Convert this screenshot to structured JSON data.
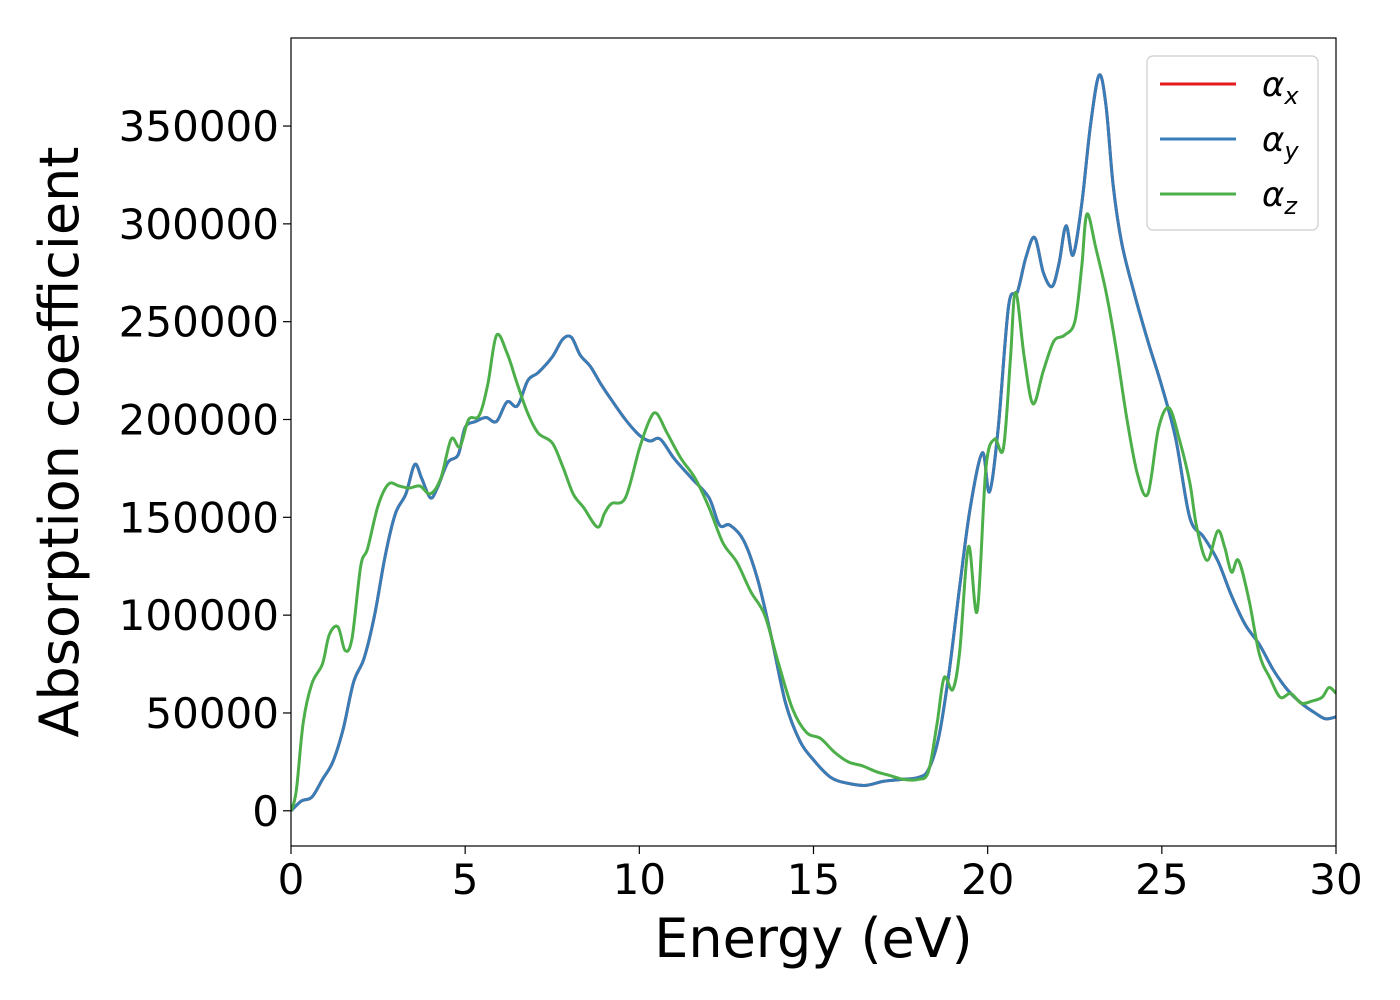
{
  "chart_data": {
    "type": "line",
    "title": "",
    "xlabel": "Energy (eV)",
    "ylabel": "Absorption coefficient",
    "xlim": [
      0,
      30
    ],
    "ylim": [
      -18000,
      395000
    ],
    "xticks": [
      0,
      5,
      10,
      15,
      20,
      25,
      30
    ],
    "yticks": [
      0,
      50000,
      100000,
      150000,
      200000,
      250000,
      300000,
      350000
    ],
    "grid": false,
    "legend_position": "top-right",
    "series": [
      {
        "name": "αx",
        "legend_base": "α",
        "legend_sub": "x",
        "color": "#e41a1c",
        "x": [
          0,
          0.3,
          0.6,
          0.9,
          1.2,
          1.5,
          1.8,
          2.1,
          2.4,
          2.7,
          3.0,
          3.3,
          3.55,
          3.75,
          4.0,
          4.2,
          4.5,
          4.8,
          5.0,
          5.3,
          5.6,
          5.9,
          6.2,
          6.5,
          6.8,
          7.1,
          7.5,
          7.8,
          8.05,
          8.3,
          8.6,
          8.9,
          9.2,
          9.6,
          10.0,
          10.3,
          10.6,
          11.0,
          11.5,
          12.0,
          12.3,
          12.6,
          13.0,
          13.4,
          13.8,
          14.2,
          14.6,
          15.0,
          15.5,
          16.0,
          16.5,
          17.0,
          17.5,
          18.0,
          18.3,
          18.6,
          18.9,
          19.2,
          19.5,
          19.85,
          20.05,
          20.3,
          20.6,
          20.85,
          21.1,
          21.35,
          21.6,
          21.85,
          22.05,
          22.25,
          22.45,
          22.7,
          22.95,
          23.2,
          23.4,
          23.6,
          23.85,
          24.2,
          24.6,
          25.0,
          25.4,
          25.8,
          26.2,
          26.6,
          27.0,
          27.4,
          27.8,
          28.2,
          28.6,
          29.0,
          29.4,
          29.7,
          30.0
        ],
        "y": [
          0,
          5000,
          7000,
          16000,
          25000,
          42000,
          66000,
          78000,
          100000,
          130000,
          152000,
          162000,
          177000,
          170000,
          160000,
          165000,
          178000,
          182000,
          196000,
          199000,
          201000,
          199000,
          209000,
          207000,
          220000,
          224000,
          232000,
          241000,
          242000,
          233000,
          227000,
          218000,
          210000,
          200000,
          192000,
          189000,
          190000,
          180000,
          170000,
          160000,
          146000,
          146000,
          138000,
          118000,
          88000,
          55000,
          36000,
          26000,
          17000,
          14000,
          13000,
          15000,
          16000,
          17000,
          21000,
          38000,
          72000,
          115000,
          155000,
          183000,
          163000,
          195000,
          258000,
          265000,
          283000,
          293000,
          275000,
          268000,
          280000,
          299000,
          284000,
          310000,
          350000,
          376000,
          360000,
          320000,
          290000,
          265000,
          240000,
          217000,
          190000,
          150000,
          140000,
          128000,
          110000,
          95000,
          85000,
          72000,
          62000,
          55000,
          50000,
          47000,
          48000
        ]
      },
      {
        "name": "αy",
        "legend_base": "α",
        "legend_sub": "y",
        "color": "#377eb8",
        "x": [
          0,
          0.3,
          0.6,
          0.9,
          1.2,
          1.5,
          1.8,
          2.1,
          2.4,
          2.7,
          3.0,
          3.3,
          3.55,
          3.75,
          4.0,
          4.2,
          4.5,
          4.8,
          5.0,
          5.3,
          5.6,
          5.9,
          6.2,
          6.5,
          6.8,
          7.1,
          7.5,
          7.8,
          8.05,
          8.3,
          8.6,
          8.9,
          9.2,
          9.6,
          10.0,
          10.3,
          10.6,
          11.0,
          11.5,
          12.0,
          12.3,
          12.6,
          13.0,
          13.4,
          13.8,
          14.2,
          14.6,
          15.0,
          15.5,
          16.0,
          16.5,
          17.0,
          17.5,
          18.0,
          18.3,
          18.6,
          18.9,
          19.2,
          19.5,
          19.85,
          20.05,
          20.3,
          20.6,
          20.85,
          21.1,
          21.35,
          21.6,
          21.85,
          22.05,
          22.25,
          22.45,
          22.7,
          22.95,
          23.2,
          23.4,
          23.6,
          23.85,
          24.2,
          24.6,
          25.0,
          25.4,
          25.8,
          26.2,
          26.6,
          27.0,
          27.4,
          27.8,
          28.2,
          28.6,
          29.0,
          29.4,
          29.7,
          30.0
        ],
        "y": [
          0,
          5000,
          7000,
          16000,
          25000,
          42000,
          66000,
          78000,
          100000,
          130000,
          152000,
          162000,
          177000,
          170000,
          160000,
          165000,
          178000,
          182000,
          196000,
          199000,
          201000,
          199000,
          209000,
          207000,
          220000,
          224000,
          232000,
          241000,
          242000,
          233000,
          227000,
          218000,
          210000,
          200000,
          192000,
          189000,
          190000,
          180000,
          170000,
          160000,
          146000,
          146000,
          138000,
          118000,
          88000,
          55000,
          36000,
          26000,
          17000,
          14000,
          13000,
          15000,
          16000,
          17000,
          21000,
          38000,
          72000,
          115000,
          155000,
          183000,
          163000,
          195000,
          258000,
          265000,
          283000,
          293000,
          275000,
          268000,
          280000,
          299000,
          284000,
          310000,
          350000,
          376000,
          360000,
          320000,
          290000,
          265000,
          240000,
          217000,
          190000,
          150000,
          140000,
          128000,
          110000,
          95000,
          85000,
          72000,
          62000,
          55000,
          50000,
          47000,
          48000
        ]
      },
      {
        "name": "αz",
        "legend_base": "α",
        "legend_sub": "z",
        "color": "#4daf4a",
        "x": [
          0,
          0.15,
          0.35,
          0.6,
          0.9,
          1.1,
          1.35,
          1.55,
          1.75,
          2.0,
          2.2,
          2.5,
          2.8,
          3.1,
          3.4,
          3.7,
          4.0,
          4.3,
          4.6,
          4.85,
          5.1,
          5.4,
          5.65,
          5.9,
          6.2,
          6.5,
          6.8,
          7.1,
          7.5,
          7.8,
          8.1,
          8.4,
          8.8,
          9.0,
          9.2,
          9.6,
          10.0,
          10.3,
          10.5,
          10.8,
          11.2,
          11.6,
          12.0,
          12.4,
          12.8,
          13.2,
          13.6,
          14.0,
          14.4,
          14.8,
          15.2,
          15.6,
          16.0,
          16.4,
          16.8,
          17.2,
          17.6,
          18.0,
          18.3,
          18.55,
          18.75,
          19.0,
          19.2,
          19.45,
          19.7,
          19.95,
          20.2,
          20.45,
          20.65,
          20.8,
          21.05,
          21.3,
          21.6,
          21.9,
          22.2,
          22.5,
          22.7,
          22.85,
          23.1,
          23.4,
          23.7,
          24.0,
          24.3,
          24.6,
          24.9,
          25.2,
          25.5,
          25.8,
          26.0,
          26.3,
          26.6,
          26.8,
          27.0,
          27.2,
          27.5,
          27.8,
          28.1,
          28.4,
          28.7,
          29.0,
          29.3,
          29.6,
          29.8,
          30.0
        ],
        "y": [
          0,
          10000,
          45000,
          65000,
          75000,
          90000,
          94000,
          82000,
          88000,
          125000,
          134000,
          156000,
          167000,
          166000,
          165000,
          166000,
          162000,
          170000,
          190000,
          186000,
          200000,
          202000,
          218000,
          243000,
          234000,
          218000,
          203000,
          193000,
          188000,
          176000,
          162000,
          155000,
          145000,
          152000,
          157000,
          160000,
          185000,
          200000,
          203000,
          193000,
          180000,
          170000,
          155000,
          137000,
          127000,
          112000,
          100000,
          75000,
          52000,
          40000,
          37000,
          30000,
          25000,
          23000,
          20000,
          18000,
          16000,
          16000,
          20000,
          45000,
          68000,
          62000,
          82000,
          135000,
          102000,
          175000,
          190000,
          185000,
          230000,
          265000,
          232000,
          208000,
          225000,
          240000,
          243000,
          250000,
          278000,
          305000,
          288000,
          265000,
          235000,
          200000,
          172000,
          162000,
          195000,
          206000,
          190000,
          168000,
          145000,
          128000,
          143000,
          135000,
          122000,
          128000,
          108000,
          80000,
          68000,
          58000,
          60000,
          55000,
          56000,
          58000,
          63000,
          60000
        ]
      }
    ]
  }
}
